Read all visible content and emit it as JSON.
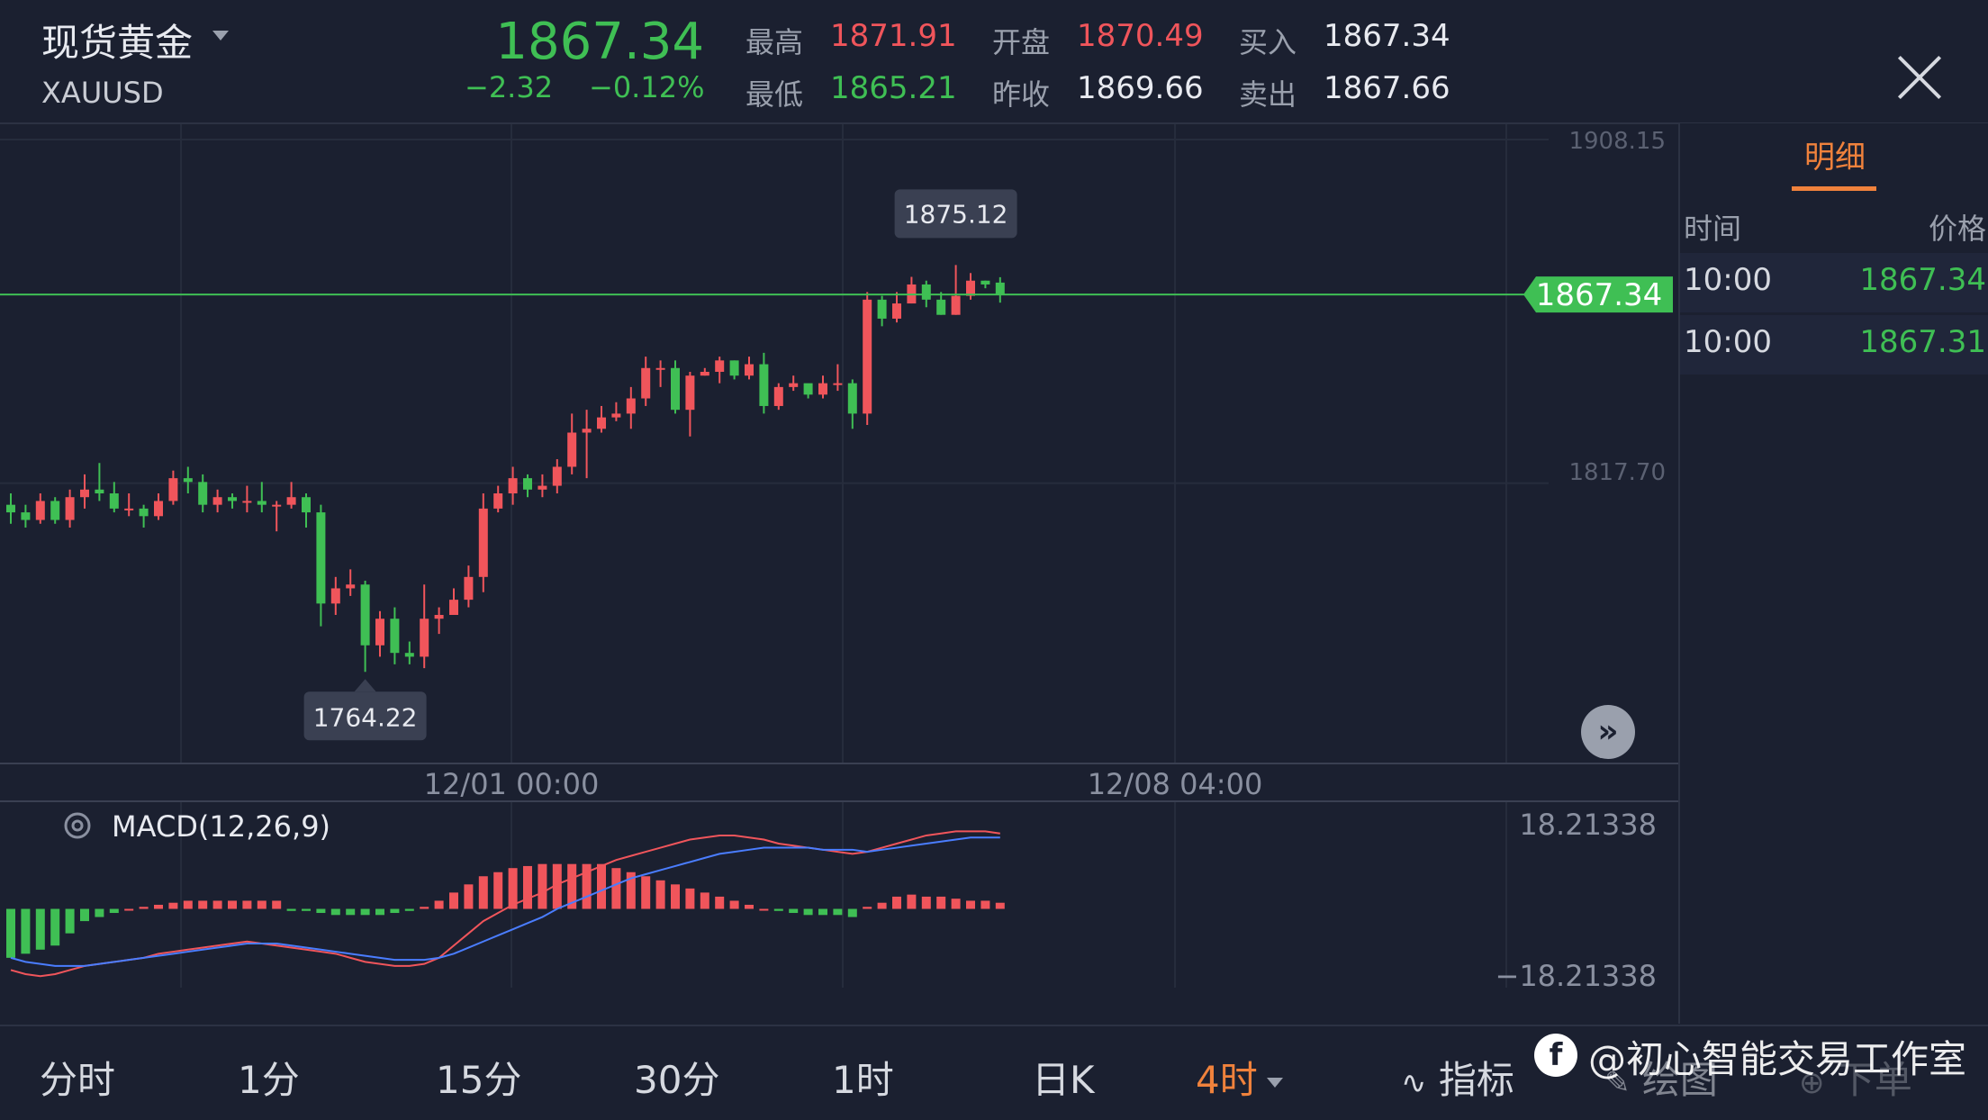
{
  "header": {
    "symbol_name": "现货黄金",
    "symbol_code": "XAUUSD",
    "price": "1867.34",
    "change": "−2.32",
    "change_pct": "−0.12%",
    "high_label": "最高",
    "high_value": "1871.91",
    "low_label": "最低",
    "low_value": "1865.21",
    "open_label": "开盘",
    "open_value": "1870.49",
    "prev_close_label": "昨收",
    "prev_close_value": "1869.66",
    "bid_label": "买入",
    "bid_value": "1867.34",
    "ask_label": "卖出",
    "ask_value": "1867.66"
  },
  "side_panel": {
    "tab": "明细",
    "col_time": "时间",
    "col_price": "价格",
    "rows": [
      {
        "time": "10:00",
        "price": "1867.34"
      },
      {
        "time": "10:00",
        "price": "1867.31"
      }
    ]
  },
  "chart_data": {
    "type": "candlestick",
    "y_ticks": [
      "1908.15",
      "1817.70"
    ],
    "x_ticks": [
      "12/01 00:00",
      "12/08 04:00"
    ],
    "ylim": [
      1746.5,
      1908.15
    ],
    "current_price_label": "1867.34",
    "max_annotation": "1875.12",
    "min_annotation": "1764.22",
    "candles": [
      [
        1812,
        1810,
        1815,
        1807
      ],
      [
        1810,
        1808,
        1812,
        1806
      ],
      [
        1808,
        1813,
        1815,
        1807
      ],
      [
        1813,
        1808,
        1814,
        1807
      ],
      [
        1808,
        1814,
        1816,
        1806
      ],
      [
        1814,
        1816,
        1820,
        1811
      ],
      [
        1816,
        1815,
        1823,
        1813
      ],
      [
        1815,
        1811,
        1818,
        1810
      ],
      [
        1811,
        1811,
        1815,
        1809
      ],
      [
        1811,
        1809,
        1812,
        1806
      ],
      [
        1809,
        1813,
        1815,
        1808
      ],
      [
        1813,
        1819,
        1821,
        1812
      ],
      [
        1819,
        1818,
        1822,
        1815
      ],
      [
        1818,
        1812,
        1820,
        1810
      ],
      [
        1812,
        1814,
        1816,
        1810
      ],
      [
        1814,
        1813,
        1815,
        1811
      ],
      [
        1813,
        1813,
        1817,
        1810
      ],
      [
        1813,
        1812,
        1818,
        1810
      ],
      [
        1812,
        1812,
        1813,
        1805
      ],
      [
        1812,
        1814,
        1818,
        1811
      ],
      [
        1814,
        1810,
        1815,
        1806
      ],
      [
        1810,
        1786,
        1812,
        1780
      ],
      [
        1786,
        1790,
        1793,
        1783
      ],
      [
        1790,
        1791,
        1795,
        1788
      ],
      [
        1791,
        1775,
        1792,
        1768
      ],
      [
        1775,
        1782,
        1784,
        1772
      ],
      [
        1782,
        1773,
        1785,
        1770
      ],
      [
        1773,
        1772,
        1776,
        1770
      ],
      [
        1772,
        1782,
        1791,
        1769
      ],
      [
        1782,
        1783,
        1785,
        1778
      ],
      [
        1783,
        1787,
        1790,
        1783
      ],
      [
        1787,
        1793,
        1796,
        1785
      ],
      [
        1793,
        1811,
        1815,
        1789
      ],
      [
        1811,
        1815,
        1817,
        1810
      ],
      [
        1815,
        1819,
        1822,
        1812
      ],
      [
        1819,
        1816,
        1820,
        1814
      ],
      [
        1816,
        1817,
        1820,
        1814
      ],
      [
        1817,
        1822,
        1824,
        1815
      ],
      [
        1822,
        1831,
        1836,
        1820
      ],
      [
        1831,
        1832,
        1837,
        1819
      ],
      [
        1832,
        1835,
        1838,
        1831
      ],
      [
        1835,
        1836,
        1839,
        1834
      ],
      [
        1836,
        1840,
        1843,
        1832
      ],
      [
        1840,
        1848,
        1851,
        1838
      ],
      [
        1848,
        1848,
        1850,
        1843
      ],
      [
        1848,
        1837,
        1850,
        1836
      ],
      [
        1837,
        1846,
        1847,
        1830
      ],
      [
        1846,
        1847,
        1848,
        1846
      ],
      [
        1847,
        1850,
        1851,
        1844
      ],
      [
        1850,
        1846,
        1850,
        1845
      ],
      [
        1846,
        1849,
        1851,
        1845
      ],
      [
        1849,
        1838,
        1852,
        1836
      ],
      [
        1838,
        1843,
        1844,
        1837
      ],
      [
        1843,
        1844,
        1846,
        1842
      ],
      [
        1844,
        1841,
        1843,
        1840
      ],
      [
        1841,
        1844,
        1846,
        1840
      ],
      [
        1844,
        1844,
        1849,
        1842
      ],
      [
        1844,
        1836,
        1845,
        1832
      ],
      [
        1836,
        1866,
        1868,
        1833
      ],
      [
        1866,
        1861,
        1867,
        1859
      ],
      [
        1861,
        1865,
        1868,
        1860
      ],
      [
        1865,
        1870,
        1872,
        1865
      ],
      [
        1870,
        1866,
        1871,
        1864
      ],
      [
        1866,
        1862,
        1868,
        1862
      ],
      [
        1862,
        1867,
        1875.12,
        1862
      ],
      [
        1867,
        1871,
        1873,
        1866
      ],
      [
        1871,
        1870,
        1871,
        1869
      ],
      [
        1870.49,
        1867.34,
        1871.91,
        1865.21
      ]
    ],
    "macd": {
      "label": "MACD(12,26,9)",
      "y_top": "18.21338",
      "y_bottom": "−18.21338",
      "range": [
        -18.21338,
        18.21338
      ],
      "hist": [
        -12,
        -11,
        -10,
        -9,
        -6,
        -3,
        -2,
        -1,
        0,
        0.5,
        1,
        1.5,
        2,
        2,
        2,
        2,
        2,
        2,
        2,
        -0.5,
        -0.5,
        -1,
        -1.5,
        -1.5,
        -1.5,
        -1.5,
        -1,
        -0.5,
        0.5,
        2,
        4,
        6,
        8,
        9,
        10,
        10.5,
        11,
        11,
        11,
        11,
        11,
        10,
        9,
        8,
        7,
        6,
        5,
        4,
        3,
        2,
        1,
        0,
        -0.5,
        -1,
        -1.5,
        -1.5,
        -1.5,
        -2,
        0.5,
        1.5,
        3,
        3.5,
        3,
        3,
        2.5,
        2,
        2,
        1.5
      ],
      "dif": [
        -15,
        -16,
        -16.5,
        -16,
        -15,
        -14,
        -13.5,
        -13,
        -12.5,
        -12,
        -11,
        -10.5,
        -10,
        -9.5,
        -9,
        -8.5,
        -8,
        -8.5,
        -9,
        -9.5,
        -10,
        -10.5,
        -11,
        -12,
        -13,
        -13.5,
        -14,
        -14,
        -13.5,
        -12,
        -9,
        -6,
        -3,
        -1,
        1,
        2.5,
        4,
        6,
        7.5,
        9,
        10.5,
        12,
        13,
        14,
        15,
        16,
        17,
        17.5,
        18,
        18,
        17.5,
        17,
        16,
        15.5,
        15,
        14.5,
        14,
        13.5,
        14,
        15,
        16,
        17,
        18,
        18.5,
        19,
        19,
        19,
        18.5
      ],
      "dea": [
        -12,
        -13,
        -13.5,
        -14,
        -14,
        -14,
        -13.5,
        -13,
        -12.5,
        -12,
        -11.5,
        -11,
        -10.5,
        -10,
        -9.5,
        -9,
        -8.5,
        -8.5,
        -8.5,
        -9,
        -9.5,
        -10,
        -10.5,
        -11,
        -11.5,
        -12,
        -12.5,
        -12.5,
        -12.5,
        -12,
        -11,
        -9.5,
        -8,
        -6.5,
        -5,
        -3.5,
        -2,
        0,
        1.5,
        3,
        4.5,
        6,
        7.5,
        8.5,
        9.5,
        10.5,
        11.5,
        12.5,
        13.5,
        14,
        14.5,
        15,
        15,
        15,
        15,
        14.5,
        14.5,
        14.5,
        14,
        14.5,
        15,
        15.5,
        16,
        16.5,
        17,
        17.5,
        17.5,
        17.5
      ]
    }
  },
  "bottom_bar": {
    "tabs": [
      "分时",
      "1分",
      "15分",
      "30分",
      "1时",
      "日K"
    ],
    "active_tab": "4时",
    "indicator": "指标",
    "draw": "绘图",
    "order": "下单",
    "watermark": "@初心智能交易工作室"
  },
  "colors": {
    "up": "#f0555b",
    "down": "#3fbf54",
    "accent": "#f0823c",
    "bg": "#1b2030"
  }
}
